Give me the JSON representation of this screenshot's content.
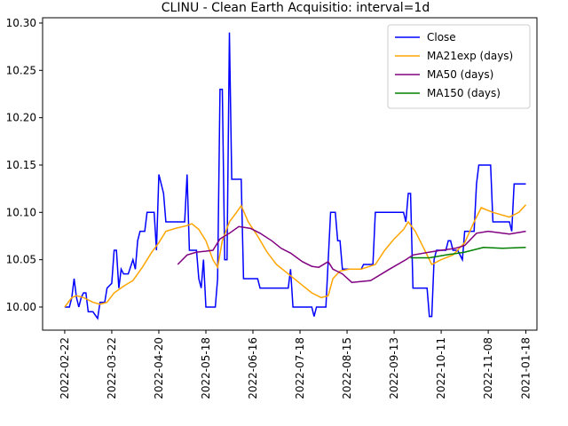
{
  "chart_data": {
    "type": "line",
    "title": "CLINU - Clean Earth Acquisitio: interval=1d",
    "xlim": [
      -9.4,
      200.7
    ],
    "xticks": [
      {
        "value": 0,
        "label": "2022-02-22"
      },
      {
        "value": 20,
        "label": "2022-03-22"
      },
      {
        "value": 40,
        "label": "2022-04-20"
      },
      {
        "value": 60,
        "label": "2022-05-18"
      },
      {
        "value": 80,
        "label": "2022-06-16"
      },
      {
        "value": 100,
        "label": "2022-07-18"
      },
      {
        "value": 120,
        "label": "2022-08-15"
      },
      {
        "value": 140,
        "label": "2022-09-13"
      },
      {
        "value": 160,
        "label": "2022-10-11"
      },
      {
        "value": 180,
        "label": "2022-11-08"
      },
      {
        "value": 196,
        "label": "2021-01-18"
      }
    ],
    "ylim": [
      9.9756,
      10.3056
    ],
    "yticks": [
      {
        "value": 10.0,
        "label": "10.00"
      },
      {
        "value": 10.05,
        "label": "10.05"
      },
      {
        "value": 10.1,
        "label": "10.10"
      },
      {
        "value": 10.15,
        "label": "10.15"
      },
      {
        "value": 10.2,
        "label": "10.20"
      },
      {
        "value": 10.25,
        "label": "10.25"
      },
      {
        "value": 10.3,
        "label": "10.30"
      }
    ],
    "legend": "upper right",
    "series": [
      {
        "name": "Close",
        "color": "#0000ff",
        "x": [
          0,
          2,
          3,
          4,
          5,
          6,
          7,
          8,
          9,
          10,
          12,
          14,
          15,
          17,
          18,
          20,
          21,
          22,
          23,
          24,
          25,
          27,
          29,
          30,
          31,
          32,
          34,
          35,
          38,
          39,
          40,
          42,
          43,
          51,
          52,
          53,
          56,
          57,
          58,
          59,
          60,
          64,
          65,
          66,
          67,
          68,
          69,
          70,
          71,
          75,
          76,
          82,
          83,
          95,
          96,
          97,
          105,
          106,
          107,
          111,
          113,
          115,
          116,
          117,
          118,
          126,
          127,
          131,
          132,
          144,
          145,
          146,
          147,
          148,
          154,
          155,
          156,
          157,
          158,
          162,
          163,
          164,
          165,
          167,
          169,
          170,
          174,
          175,
          176,
          181,
          182,
          189,
          190,
          191,
          196
        ],
        "values": [
          10.0,
          10.0,
          10.01,
          10.03,
          10.01,
          10.0,
          10.01,
          10.015,
          10.015,
          9.995,
          9.995,
          9.988,
          10.005,
          10.005,
          10.02,
          10.025,
          10.06,
          10.06,
          10.02,
          10.04,
          10.035,
          10.035,
          10.05,
          10.04,
          10.07,
          10.08,
          10.08,
          10.1,
          10.1,
          10.06,
          10.14,
          10.12,
          10.09,
          10.09,
          10.14,
          10.06,
          10.06,
          10.03,
          10.02,
          10.05,
          10.0,
          10.0,
          10.03,
          10.23,
          10.23,
          10.05,
          10.05,
          10.29,
          10.135,
          10.135,
          10.03,
          10.03,
          10.02,
          10.02,
          10.04,
          10.0,
          10.0,
          9.99,
          10.0,
          10.0,
          10.1,
          10.1,
          10.07,
          10.07,
          10.04,
          10.04,
          10.045,
          10.045,
          10.1,
          10.1,
          10.09,
          10.12,
          10.12,
          10.02,
          10.02,
          9.99,
          9.99,
          10.05,
          10.06,
          10.06,
          10.07,
          10.07,
          10.06,
          10.06,
          10.05,
          10.08,
          10.08,
          10.13,
          10.15,
          10.15,
          10.09,
          10.09,
          10.08,
          10.13,
          10.13
        ]
      },
      {
        "name": "MA21exp (days)",
        "color": "#ffa500",
        "x": [
          0,
          3,
          5,
          8,
          12,
          15,
          18,
          21,
          25,
          29,
          33,
          37,
          40,
          43,
          47,
          52,
          54,
          57,
          60,
          63,
          65,
          67,
          70,
          73,
          75,
          78,
          82,
          86,
          90,
          95,
          100,
          105,
          109,
          112,
          114,
          117,
          121,
          126,
          132,
          136,
          140,
          144,
          146,
          149,
          152,
          156,
          160,
          165,
          170,
          174,
          177,
          182,
          189,
          193,
          196
        ],
        "values": [
          10.0,
          10.01,
          10.012,
          10.01,
          10.005,
          10.003,
          10.005,
          10.015,
          10.022,
          10.028,
          10.042,
          10.058,
          10.068,
          10.08,
          10.083,
          10.086,
          10.088,
          10.082,
          10.07,
          10.05,
          10.042,
          10.07,
          10.09,
          10.1,
          10.107,
          10.09,
          10.075,
          10.058,
          10.045,
          10.035,
          10.025,
          10.015,
          10.01,
          10.012,
          10.03,
          10.038,
          10.04,
          10.04,
          10.045,
          10.06,
          10.072,
          10.082,
          10.09,
          10.08,
          10.065,
          10.045,
          10.05,
          10.055,
          10.068,
          10.09,
          10.105,
          10.1,
          10.095,
          10.1,
          10.108
        ]
      },
      {
        "name": "MA50 (days)",
        "color": "#800080",
        "x": [
          48,
          52,
          56,
          60,
          63,
          66,
          70,
          74,
          79,
          83,
          88,
          92,
          96,
          101,
          105,
          108,
          112,
          114,
          118,
          122,
          130,
          138,
          145,
          148,
          155,
          160,
          166,
          170,
          175,
          180,
          189,
          196
        ],
        "values": [
          10.045,
          10.055,
          10.058,
          10.059,
          10.06,
          10.072,
          10.078,
          10.085,
          10.083,
          10.078,
          10.07,
          10.062,
          10.057,
          10.048,
          10.043,
          10.042,
          10.048,
          10.04,
          10.035,
          10.026,
          10.028,
          10.04,
          10.05,
          10.055,
          10.058,
          10.06,
          10.062,
          10.065,
          10.078,
          10.08,
          10.077,
          10.08
        ]
      },
      {
        "name": "MA150 (days)",
        "color": "#008000",
        "x": [
          147,
          155,
          162,
          170,
          178,
          186,
          196
        ],
        "values": [
          10.052,
          10.052,
          10.055,
          10.058,
          10.063,
          10.062,
          10.063
        ]
      }
    ]
  }
}
